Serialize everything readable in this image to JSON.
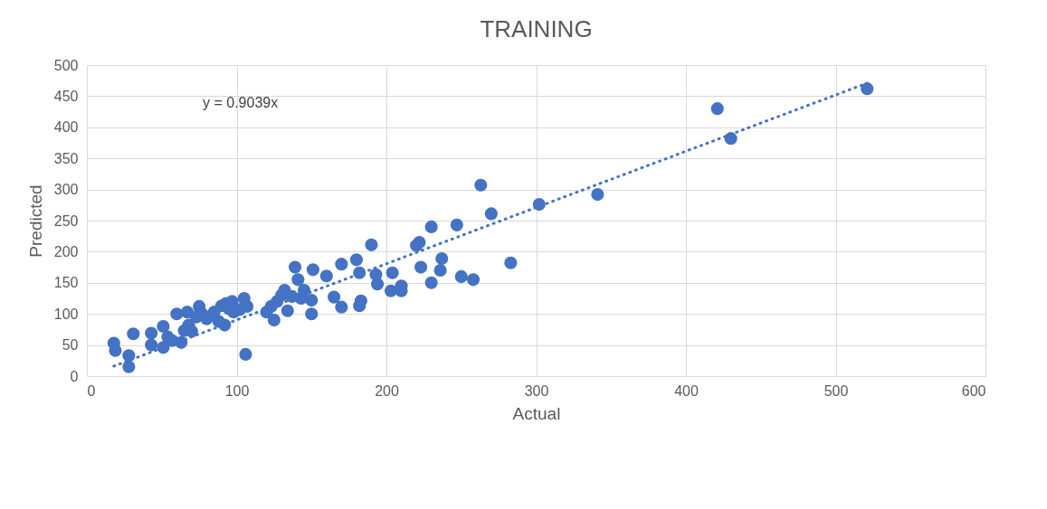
{
  "chart_data": {
    "type": "scatter",
    "title": "TRAINING",
    "xlabel": "Actual",
    "ylabel": "Predicted",
    "xlim": [
      0,
      600
    ],
    "xticks": [
      0,
      100,
      200,
      300,
      400,
      500,
      600
    ],
    "ylim": [
      0,
      500
    ],
    "yticks": [
      0,
      50,
      100,
      150,
      200,
      250,
      300,
      350,
      400,
      450,
      500
    ],
    "grid": true,
    "marker": "circle",
    "annotations": [
      "y = 0.9039x"
    ],
    "series": [
      {
        "color": "#4472c4",
        "x": [
          18,
          19,
          28,
          28,
          31,
          43,
          43,
          51,
          51,
          54,
          57,
          60,
          63,
          65,
          67,
          68,
          70,
          73,
          75,
          77,
          80,
          85,
          88,
          90,
          92,
          93,
          95,
          97,
          98,
          102,
          105,
          106,
          107,
          120,
          123,
          125,
          127,
          130,
          132,
          134,
          137,
          139,
          141,
          143,
          145,
          150,
          150,
          151,
          160,
          165,
          170,
          170,
          180,
          182,
          182,
          183,
          190,
          193,
          194,
          203,
          204,
          210,
          210,
          220,
          222,
          223,
          230,
          230,
          236,
          237,
          247,
          250,
          258,
          263,
          270,
          283,
          302,
          341,
          421,
          430,
          521
        ],
        "values": [
          53,
          41,
          33,
          15,
          68,
          50,
          69,
          80,
          46,
          63,
          57,
          100,
          54,
          73,
          103,
          82,
          72,
          95,
          112,
          100,
          92,
          103,
          88,
          113,
          82,
          117,
          108,
          120,
          103,
          107,
          125,
          35,
          112,
          103,
          112,
          90,
          120,
          130,
          138,
          105,
          128,
          175,
          155,
          125,
          138,
          100,
          122,
          171,
          161,
          127,
          111,
          180,
          187,
          113,
          166,
          121,
          211,
          163,
          148,
          137,
          166,
          145,
          137,
          210,
          215,
          175,
          240,
          150,
          170,
          189,
          243,
          160,
          155,
          307,
          261,
          182,
          276,
          292,
          430,
          382,
          462
        ]
      },
      {
        "type": "line",
        "color": "#4472c4",
        "line_style": "dotted",
        "marker": "none",
        "x": [
          18,
          521
        ],
        "values": [
          16,
          471
        ]
      }
    ]
  }
}
